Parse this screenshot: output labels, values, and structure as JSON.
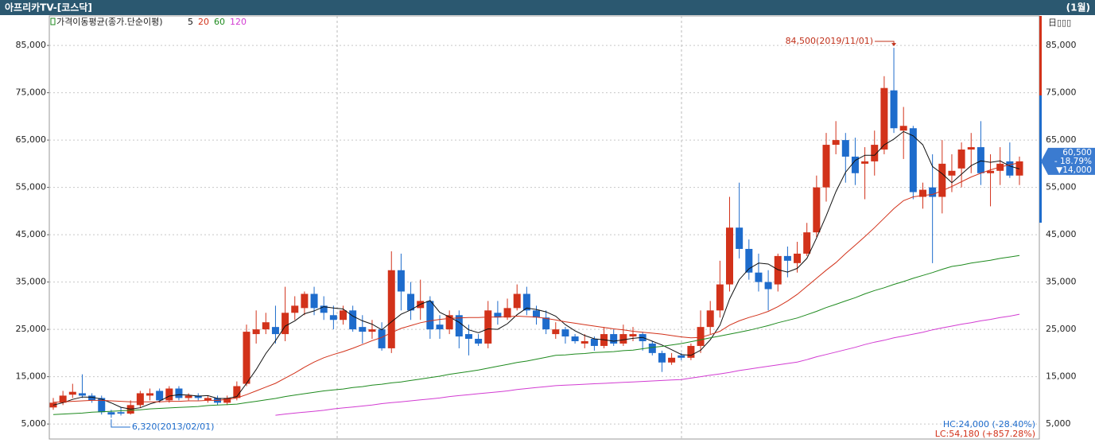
{
  "chart_data": {
    "type": "candlestick",
    "title": "아프리카TV-[코스닥]",
    "period": "(1월)",
    "legend_title": "가격이동평균(종가.단순이평)",
    "up_color": "#d2321a",
    "down_color": "#1e6ccc",
    "ylim": [
      2500,
      90900
    ],
    "yticks": [
      {
        "value": 5000,
        "label": "5,000"
      },
      {
        "value": 15000,
        "label": "15,000"
      },
      {
        "value": 25000,
        "label": "25,000"
      },
      {
        "value": 35000,
        "label": "35,000"
      },
      {
        "value": 45000,
        "label": "45,000"
      },
      {
        "value": 55000,
        "label": "55,000"
      },
      {
        "value": 65000,
        "label": "65,000"
      },
      {
        "value": 75000,
        "label": "75,000"
      },
      {
        "value": 85000,
        "label": "85,000"
      }
    ],
    "grid": true,
    "open": [
      8500,
      9500,
      11200,
      11500,
      11000,
      10500,
      7500,
      7500,
      7200,
      9000,
      11000,
      12000,
      10000,
      12500,
      10500,
      11000,
      10000,
      10500,
      9500,
      10500,
      13500,
      24000,
      25000,
      25500,
      24000,
      28500,
      29500,
      32500,
      30000,
      28000,
      27000,
      29000,
      25500,
      24500,
      25000,
      21000,
      37500,
      32500,
      29500,
      31000,
      26000,
      25000,
      28000,
      24000,
      23000,
      22000,
      28500,
      27500,
      29500,
      32500,
      29000,
      27500,
      24000,
      25000,
      23500,
      22000,
      23000,
      21500,
      24000,
      22000,
      23500,
      24000,
      22000,
      20000,
      18000,
      19500,
      19000,
      21500,
      25500,
      29000,
      34500,
      46500,
      42000,
      37000,
      35000,
      34500,
      40500,
      39000,
      41000,
      45500,
      55000,
      64000,
      65000,
      61500,
      60000,
      60500,
      63000,
      75500,
      67000,
      67500,
      53000,
      55000,
      53000,
      57500,
      59000,
      63000,
      63500,
      58000,
      58500,
      60500,
      57500
    ],
    "high": [
      10500,
      12000,
      13500,
      15500,
      11500,
      11000,
      8000,
      8500,
      10000,
      12000,
      12500,
      12500,
      13000,
      13000,
      11500,
      11500,
      11000,
      11000,
      11000,
      14000,
      26000,
      29000,
      28500,
      30000,
      34000,
      32000,
      33000,
      34000,
      32000,
      30000,
      30000,
      30000,
      28000,
      27000,
      26500,
      41500,
      41000,
      35000,
      35500,
      32000,
      28000,
      29000,
      29000,
      26000,
      24000,
      31000,
      31000,
      31500,
      34500,
      34000,
      30000,
      29000,
      26500,
      25500,
      24000,
      24000,
      23500,
      25500,
      25000,
      26000,
      25500,
      24500,
      22500,
      20500,
      20000,
      20000,
      22000,
      29000,
      31000,
      39500,
      53000,
      56000,
      44000,
      41000,
      37500,
      41000,
      42500,
      43500,
      47500,
      57500,
      66500,
      69000,
      66500,
      65500,
      63500,
      67000,
      78500,
      84500,
      72000,
      68000,
      56000,
      62000,
      65000,
      62000,
      64500,
      66500,
      69000,
      62000,
      63500,
      64500,
      61500
    ],
    "low": [
      8000,
      9000,
      10500,
      10500,
      9500,
      7000,
      6320,
      6800,
      7000,
      8500,
      10000,
      9500,
      9500,
      10000,
      10000,
      10000,
      9500,
      9000,
      9000,
      10000,
      13000,
      22000,
      24000,
      22000,
      22500,
      27000,
      28000,
      28000,
      27000,
      25000,
      26000,
      24500,
      22000,
      23000,
      20500,
      20000,
      29000,
      27000,
      27000,
      23000,
      23000,
      24000,
      21000,
      19500,
      21500,
      21000,
      26000,
      27000,
      29000,
      28000,
      26000,
      24000,
      23000,
      22000,
      22000,
      21000,
      20500,
      21000,
      21500,
      21500,
      22500,
      20500,
      19500,
      16000,
      17500,
      18500,
      18500,
      20000,
      24000,
      27500,
      33000,
      40000,
      35500,
      33000,
      29000,
      33000,
      36000,
      37000,
      40500,
      44500,
      52000,
      62000,
      56000,
      55500,
      52500,
      57500,
      62000,
      66500,
      61000,
      52500,
      50500,
      39000,
      49500,
      54000,
      55000,
      58000,
      55500,
      51000,
      55500,
      57000,
      55500
    ],
    "close": [
      9500,
      11000,
      11800,
      11000,
      10000,
      7500,
      7000,
      7200,
      9000,
      11500,
      11500,
      10000,
      12500,
      10500,
      11000,
      10500,
      10500,
      9500,
      10500,
      13000,
      24500,
      25000,
      26500,
      24000,
      28500,
      30000,
      32500,
      29500,
      28500,
      27000,
      29000,
      25000,
      24500,
      25000,
      21000,
      37500,
      33000,
      29000,
      31000,
      25000,
      25000,
      28000,
      23500,
      23000,
      22000,
      29000,
      27500,
      29500,
      32500,
      29000,
      27500,
      25000,
      25000,
      23500,
      22500,
      22500,
      21500,
      24000,
      22000,
      24000,
      24000,
      22500,
      20000,
      18000,
      19000,
      19000,
      21500,
      25500,
      29000,
      34500,
      46500,
      42000,
      37000,
      35000,
      33500,
      40500,
      39500,
      41000,
      45500,
      55000,
      64000,
      65000,
      61500,
      58000,
      60500,
      64000,
      76000,
      67500,
      68000,
      54000,
      54500,
      53000,
      60000,
      58500,
      63000,
      63500,
      58000,
      58500,
      60000,
      57500,
      60500
    ],
    "moving_averages": [
      {
        "name": "5",
        "color": "#111111",
        "values": [
          9000,
          9500,
          10200,
          10700,
          10660,
          10260,
          9460,
          8540,
          8140,
          8440,
          9240,
          9840,
          10900,
          11200,
          11100,
          10900,
          11000,
          10400,
          10400,
          10800,
          13600,
          16500,
          19900,
          22600,
          25700,
          26800,
          28300,
          28900,
          29800,
          29500,
          29300,
          27800,
          26800,
          26100,
          24900,
          26600,
          28200,
          29100,
          30300,
          31100,
          28600,
          27600,
          26500,
          24900,
          24300,
          25100,
          25000,
          26200,
          28100,
          29500,
          29200,
          28700,
          27800,
          26000,
          24700,
          23700,
          23000,
          22800,
          22500,
          22800,
          23100,
          23300,
          22500,
          21700,
          20700,
          19700,
          19500,
          20600,
          22800,
          25900,
          31400,
          35500,
          37800,
          39000,
          38800,
          37600,
          37100,
          37900,
          40000,
          44300,
          49000,
          54100,
          58200,
          60700,
          61800,
          61800,
          64000,
          65200,
          66800,
          65900,
          64000,
          59400,
          57900,
          56000,
          57800,
          59600,
          60600,
          60300,
          60600,
          59500,
          58900
        ]
      },
      {
        "name": "20",
        "color": "#d2321a",
        "values": [
          9600,
          9700,
          9800,
          9900,
          10000,
          10000,
          9900,
          9800,
          9700,
          9700,
          9700,
          9700,
          9800,
          9800,
          9900,
          9900,
          10000,
          10000,
          10200,
          10500,
          11200,
          12000,
          12800,
          13600,
          14700,
          15800,
          17000,
          18100,
          19000,
          19700,
          20300,
          21000,
          21800,
          22600,
          23300,
          24300,
          25200,
          25800,
          26400,
          26800,
          27100,
          27300,
          27400,
          27500,
          27500,
          27600,
          27600,
          27700,
          27800,
          27700,
          27600,
          27300,
          27000,
          26600,
          26300,
          26000,
          25700,
          25400,
          25100,
          24900,
          24600,
          24400,
          24200,
          24000,
          23700,
          23400,
          23200,
          23300,
          23900,
          24600,
          25900,
          26800,
          27500,
          28100,
          28800,
          29800,
          31000,
          32400,
          34100,
          35800,
          37500,
          39100,
          41000,
          42800,
          44600,
          46500,
          48500,
          50500,
          52200,
          53000,
          53300,
          53500,
          54300,
          55200,
          56200,
          57200,
          58000,
          58700,
          59300,
          59800,
          60200
        ]
      },
      {
        "name": "60",
        "color": "#1e8a1e",
        "values": [
          7000,
          7100,
          7200,
          7300,
          7500,
          7600,
          7700,
          7800,
          7900,
          8000,
          8200,
          8300,
          8400,
          8500,
          8600,
          8700,
          8900,
          9000,
          9100,
          9200,
          9500,
          9800,
          10100,
          10400,
          10800,
          11100,
          11400,
          11700,
          12000,
          12200,
          12400,
          12700,
          12900,
          13200,
          13400,
          13700,
          13900,
          14200,
          14500,
          14800,
          15100,
          15500,
          15800,
          16100,
          16400,
          16800,
          17200,
          17600,
          18000,
          18300,
          18700,
          19100,
          19500,
          19600,
          19800,
          19900,
          20100,
          20200,
          20300,
          20500,
          20600,
          20900,
          21200,
          21400,
          21700,
          22000,
          22400,
          22800,
          23200,
          23600,
          24000,
          24400,
          24800,
          25300,
          25800,
          26400,
          26900,
          27400,
          28100,
          28800,
          29600,
          30300,
          31000,
          31700,
          32500,
          33200,
          33800,
          34500,
          35100,
          35800,
          36400,
          37000,
          37700,
          38300,
          38600,
          39000,
          39300,
          39600,
          40000,
          40300,
          40600
        ]
      },
      {
        "name": "120",
        "color": "#d23cd2",
        "values": [
          null,
          null,
          null,
          null,
          null,
          null,
          null,
          null,
          null,
          null,
          null,
          null,
          null,
          null,
          null,
          null,
          null,
          null,
          null,
          null,
          null,
          null,
          null,
          6850,
          7100,
          7300,
          7500,
          7700,
          7900,
          8200,
          8400,
          8600,
          8800,
          9000,
          9300,
          9500,
          9700,
          9900,
          10100,
          10300,
          10500,
          10800,
          11000,
          11200,
          11400,
          11600,
          11800,
          12000,
          12300,
          12500,
          12700,
          12900,
          13100,
          13200,
          13300,
          13400,
          13500,
          13600,
          13700,
          13800,
          13900,
          14000,
          14100,
          14200,
          14300,
          14400,
          14700,
          15000,
          15300,
          15600,
          15900,
          16300,
          16600,
          16900,
          17200,
          17500,
          17800,
          18100,
          18600,
          19200,
          19700,
          20200,
          20700,
          21200,
          21800,
          22300,
          22700,
          23200,
          23600,
          24000,
          24400,
          24900,
          25300,
          25700,
          26100,
          26400,
          26800,
          27100,
          27500,
          27800,
          28200
        ]
      }
    ],
    "high_annotation": "84,500(2019/11/01)",
    "low_annotation": "6,320(2013/02/01)",
    "last_price_labels": [
      "60,500",
      "- 18.79%",
      "▼14,000"
    ],
    "hc_label": "HC:24,000 (-28.40%)",
    "lc_label": "LC:54,180 (+857.28%)"
  }
}
